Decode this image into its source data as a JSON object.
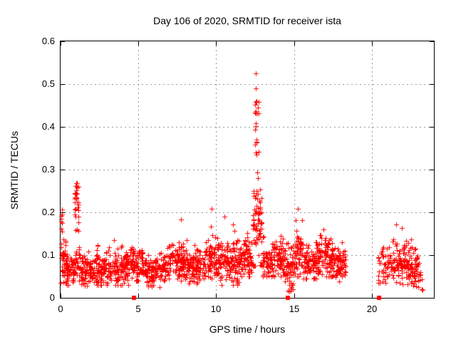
{
  "figure": {
    "title": "Day 106 of 2020, SRMTID for receiver ista",
    "xlabel": "GPS time / hours",
    "ylabel": "SRMTID / TECUs"
  },
  "colors": {
    "background": "#ffffff",
    "axis": "#000000",
    "grid": "#9b9b9b",
    "marker": "#ff0000"
  },
  "chart_data": {
    "type": "scatter",
    "title": "Day 106 of 2020, SRMTID for receiver ista",
    "xlabel": "GPS time / hours",
    "ylabel": "SRMTID / TECUs",
    "xlim": [
      0,
      24
    ],
    "ylim": [
      0,
      0.6
    ],
    "xticks": [
      0,
      5,
      10,
      15,
      20
    ],
    "yticks": [
      0,
      0.1,
      0.2,
      0.3,
      0.4,
      0.5,
      0.6
    ],
    "grid": true,
    "legend": "none",
    "marker": "plus",
    "marker_color": "#ff0000",
    "notable_points": {
      "max": [
        12.55,
        0.525
      ],
      "secondary_peak": [
        1.0,
        0.27
      ],
      "left_edge_peak": [
        0.08,
        0.21
      ]
    },
    "data_gap_hours": [
      18.3,
      20.4
    ],
    "baseline_squares_x": [
      4.7,
      14.63,
      20.46
    ],
    "seed": 1106,
    "extra_points": [
      [
        12.55,
        0.525
      ],
      [
        12.56,
        0.49
      ],
      [
        12.52,
        0.452
      ],
      [
        12.62,
        0.432
      ],
      [
        12.57,
        0.431
      ],
      [
        12.55,
        0.401
      ],
      [
        12.6,
        0.37
      ],
      [
        12.58,
        0.365
      ],
      [
        12.53,
        0.34
      ],
      [
        1.0,
        0.268
      ],
      [
        0.97,
        0.262
      ],
      [
        1.02,
        0.252
      ],
      [
        1.0,
        0.245
      ],
      [
        0.99,
        0.232
      ],
      [
        0.08,
        0.207
      ],
      [
        0.1,
        0.195
      ],
      [
        0.06,
        0.185
      ],
      [
        9.72,
        0.209
      ],
      [
        15.25,
        0.208
      ],
      [
        10.52,
        0.19
      ],
      [
        7.75,
        0.183
      ],
      [
        21.55,
        0.172
      ],
      [
        14.7,
        0.015
      ],
      [
        14.78,
        0.022
      ],
      [
        23.2,
        0.02
      ]
    ],
    "point_clusters": [
      {
        "x0": 0.02,
        "x1": 0.35,
        "n": 45,
        "mean": 0.095,
        "sd": 0.042,
        "lo": 0.035,
        "hi": 0.215
      },
      {
        "x0": 0.35,
        "x1": 0.92,
        "n": 60,
        "mean": 0.066,
        "sd": 0.018,
        "lo": 0.03,
        "hi": 0.125
      },
      {
        "x0": 0.88,
        "x1": 1.18,
        "n": 26,
        "mean": 0.215,
        "sd": 0.034,
        "lo": 0.155,
        "hi": 0.272
      },
      {
        "x0": 0.85,
        "x1": 1.3,
        "n": 30,
        "mean": 0.08,
        "sd": 0.024,
        "lo": 0.04,
        "hi": 0.14
      },
      {
        "x0": 1.3,
        "x1": 2.15,
        "n": 80,
        "mean": 0.06,
        "sd": 0.016,
        "lo": 0.028,
        "hi": 0.115
      },
      {
        "x0": 2.15,
        "x1": 3.1,
        "n": 90,
        "mean": 0.068,
        "sd": 0.02,
        "lo": 0.03,
        "hi": 0.15
      },
      {
        "x0": 3.1,
        "x1": 4.45,
        "n": 125,
        "mean": 0.07,
        "sd": 0.02,
        "lo": 0.03,
        "hi": 0.135
      },
      {
        "x0": 4.45,
        "x1": 5.3,
        "n": 80,
        "mean": 0.082,
        "sd": 0.024,
        "lo": 0.04,
        "hi": 0.16
      },
      {
        "x0": 5.3,
        "x1": 6.6,
        "n": 115,
        "mean": 0.062,
        "sd": 0.017,
        "lo": 0.025,
        "hi": 0.115
      },
      {
        "x0": 6.6,
        "x1": 8.2,
        "n": 150,
        "mean": 0.08,
        "sd": 0.024,
        "lo": 0.04,
        "hi": 0.185
      },
      {
        "x0": 8.2,
        "x1": 9.3,
        "n": 100,
        "mean": 0.072,
        "sd": 0.02,
        "lo": 0.033,
        "hi": 0.148
      },
      {
        "x0": 9.3,
        "x1": 10.2,
        "n": 88,
        "mean": 0.09,
        "sd": 0.027,
        "lo": 0.045,
        "hi": 0.212
      },
      {
        "x0": 10.2,
        "x1": 11.6,
        "n": 130,
        "mean": 0.086,
        "sd": 0.026,
        "lo": 0.03,
        "hi": 0.19
      },
      {
        "x0": 11.6,
        "x1": 12.35,
        "n": 72,
        "mean": 0.09,
        "sd": 0.026,
        "lo": 0.05,
        "hi": 0.205
      },
      {
        "x0": 12.35,
        "x1": 12.95,
        "n": 70,
        "mean": 0.17,
        "sd": 0.065,
        "lo": 0.075,
        "hi": 0.335
      },
      {
        "x0": 12.48,
        "x1": 12.75,
        "n": 14,
        "uniform": true,
        "lo": 0.33,
        "hi": 0.46
      },
      {
        "x0": 12.95,
        "x1": 14.35,
        "n": 125,
        "mean": 0.09,
        "sd": 0.024,
        "lo": 0.05,
        "hi": 0.175
      },
      {
        "x0": 14.35,
        "x1": 15.05,
        "n": 68,
        "mean": 0.068,
        "sd": 0.03,
        "lo": 0.013,
        "hi": 0.155
      },
      {
        "x0": 15.05,
        "x1": 15.6,
        "n": 55,
        "mean": 0.1,
        "sd": 0.03,
        "lo": 0.05,
        "hi": 0.215
      },
      {
        "x0": 15.6,
        "x1": 16.6,
        "n": 95,
        "mean": 0.082,
        "sd": 0.021,
        "lo": 0.045,
        "hi": 0.15
      },
      {
        "x0": 16.6,
        "x1": 17.55,
        "n": 92,
        "mean": 0.098,
        "sd": 0.027,
        "lo": 0.05,
        "hi": 0.195
      },
      {
        "x0": 17.55,
        "x1": 18.32,
        "n": 70,
        "mean": 0.08,
        "sd": 0.022,
        "lo": 0.038,
        "hi": 0.15
      },
      {
        "x0": 20.42,
        "x1": 21.1,
        "n": 40,
        "mean": 0.075,
        "sd": 0.022,
        "lo": 0.035,
        "hi": 0.13
      },
      {
        "x0": 21.1,
        "x1": 22.6,
        "n": 125,
        "mean": 0.085,
        "sd": 0.026,
        "lo": 0.032,
        "hi": 0.175
      },
      {
        "x0": 22.6,
        "x1": 23.15,
        "n": 42,
        "mean": 0.07,
        "sd": 0.022,
        "lo": 0.025,
        "hi": 0.12
      },
      {
        "x0": 22.75,
        "x1": 23.3,
        "n": 6,
        "uniform": true,
        "lo": 0.015,
        "hi": 0.045
      }
    ]
  }
}
